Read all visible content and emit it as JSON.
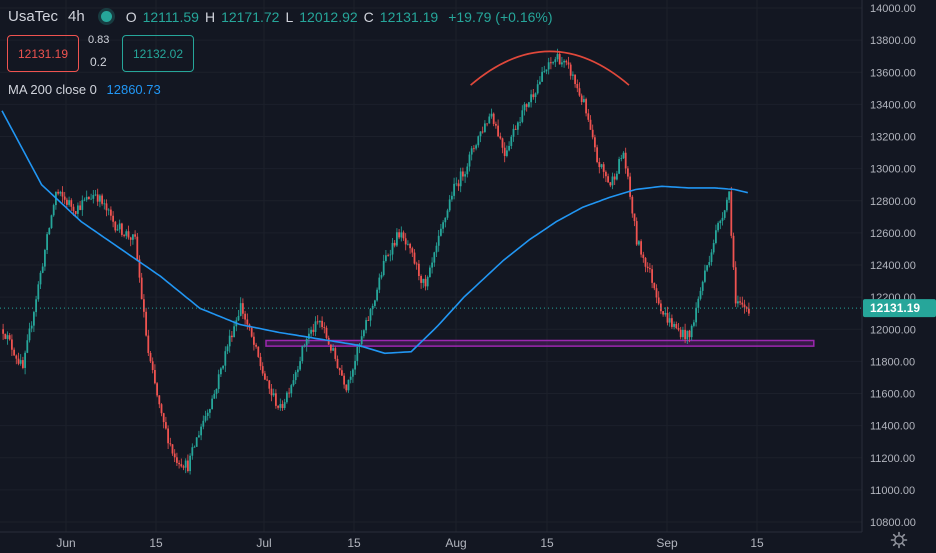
{
  "legend": {
    "symbol": "UsaTec",
    "timeframe": "4h",
    "open_label": "O",
    "open": "12111.59",
    "high_label": "H",
    "high": "12171.72",
    "low_label": "L",
    "low": "12012.92",
    "close_label": "C",
    "close": "12131.19",
    "change": "+19.79 (+0.16%)"
  },
  "trade_panel": {
    "sell_price": "12131.19",
    "buy_price": "12132.02",
    "spread_top": "0.83",
    "spread_bottom": "0.2"
  },
  "indicator": {
    "label": "MA 200 close 0",
    "value": "12860.73"
  },
  "price_tag": "12131.19",
  "colors": {
    "background": "#131722",
    "up": "#26a69a",
    "down": "#ef5350",
    "ma": "#2196f3",
    "arc": "#e0483b",
    "zone": "#9c27b0"
  },
  "chart_data": {
    "type": "candlestick",
    "ylim": [
      10760,
      14040
    ],
    "y_ticks": [
      "14000.00",
      "13800.00",
      "13600.00",
      "13400.00",
      "13200.00",
      "13000.00",
      "12800.00",
      "12600.00",
      "12400.00",
      "12200.00",
      "12000.00",
      "11800.00",
      "11600.00",
      "11400.00",
      "11200.00",
      "11000.00",
      "10800.00"
    ],
    "x_ticks": [
      "Jun",
      "15",
      "Jul",
      "15",
      "Aug",
      "15",
      "Sep",
      "15"
    ],
    "price_path": [
      [
        0,
        12000
      ],
      [
        3,
        11750
      ],
      [
        5,
        12200
      ],
      [
        8,
        12850
      ],
      [
        11,
        12750
      ],
      [
        14,
        12850
      ],
      [
        17,
        12650
      ],
      [
        20,
        12550
      ],
      [
        22,
        11850
      ],
      [
        24,
        11450
      ],
      [
        26,
        11200
      ],
      [
        28,
        11150
      ],
      [
        30,
        11400
      ],
      [
        32,
        11600
      ],
      [
        34,
        11900
      ],
      [
        36,
        12150
      ],
      [
        38,
        11900
      ],
      [
        40,
        11650
      ],
      [
        42,
        11500
      ],
      [
        44,
        11700
      ],
      [
        46,
        11950
      ],
      [
        48,
        12050
      ],
      [
        50,
        11850
      ],
      [
        52,
        11650
      ],
      [
        54,
        11900
      ],
      [
        56,
        12150
      ],
      [
        58,
        12450
      ],
      [
        60,
        12600
      ],
      [
        62,
        12450
      ],
      [
        64,
        12250
      ],
      [
        66,
        12550
      ],
      [
        68,
        12850
      ],
      [
        70,
        13000
      ],
      [
        72,
        13200
      ],
      [
        74,
        13350
      ],
      [
        76,
        13100
      ],
      [
        78,
        13300
      ],
      [
        80,
        13450
      ],
      [
        82,
        13600
      ],
      [
        84,
        13700
      ],
      [
        86,
        13600
      ],
      [
        88,
        13400
      ],
      [
        90,
        13050
      ],
      [
        92,
        12900
      ],
      [
        94,
        13100
      ],
      [
        96,
        12550
      ],
      [
        98,
        12350
      ],
      [
        100,
        12100
      ],
      [
        102,
        12000
      ],
      [
        104,
        11950
      ],
      [
        106,
        12300
      ],
      [
        108,
        12600
      ],
      [
        110,
        12850
      ],
      [
        111,
        12150
      ],
      [
        113,
        12131
      ]
    ],
    "ma_path": [
      [
        0,
        13360
      ],
      [
        6,
        12900
      ],
      [
        12,
        12670
      ],
      [
        18,
        12500
      ],
      [
        24,
        12330
      ],
      [
        30,
        12130
      ],
      [
        36,
        12030
      ],
      [
        42,
        11980
      ],
      [
        48,
        11940
      ],
      [
        54,
        11900
      ],
      [
        58,
        11850
      ],
      [
        62,
        11860
      ],
      [
        66,
        12020
      ],
      [
        70,
        12200
      ],
      [
        76,
        12430
      ],
      [
        80,
        12560
      ],
      [
        84,
        12670
      ],
      [
        88,
        12760
      ],
      [
        92,
        12820
      ],
      [
        96,
        12870
      ],
      [
        100,
        12890
      ],
      [
        104,
        12880
      ],
      [
        108,
        12880
      ],
      [
        111,
        12870
      ],
      [
        113,
        12850
      ]
    ],
    "total_bars": 113,
    "zone": {
      "from_bar": 40,
      "to_bar": 123,
      "y_low": 11895,
      "y_high": 11930
    },
    "arc": {
      "from_bar": 71,
      "to_bar": 95,
      "peak": 13730,
      "ends": 13520
    },
    "last_price": 12131.19
  }
}
